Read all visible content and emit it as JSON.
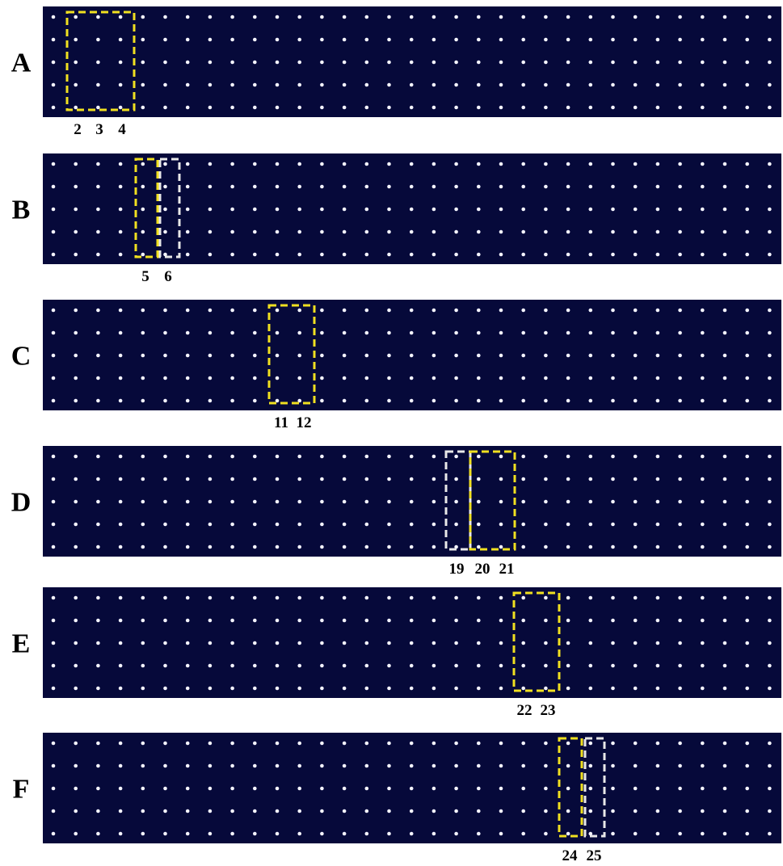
{
  "panels": [
    {
      "label": "A",
      "column_labels": [
        "2",
        "3",
        "4"
      ]
    },
    {
      "label": "B",
      "column_labels": [
        "5",
        "6"
      ]
    },
    {
      "label": "C",
      "column_labels": [
        "11",
        "12"
      ]
    },
    {
      "label": "D",
      "column_labels": [
        "19",
        "20",
        "21"
      ]
    },
    {
      "label": "E",
      "column_labels": [
        "22",
        "23"
      ]
    },
    {
      "label": "F",
      "column_labels": [
        "24",
        "25"
      ]
    }
  ]
}
